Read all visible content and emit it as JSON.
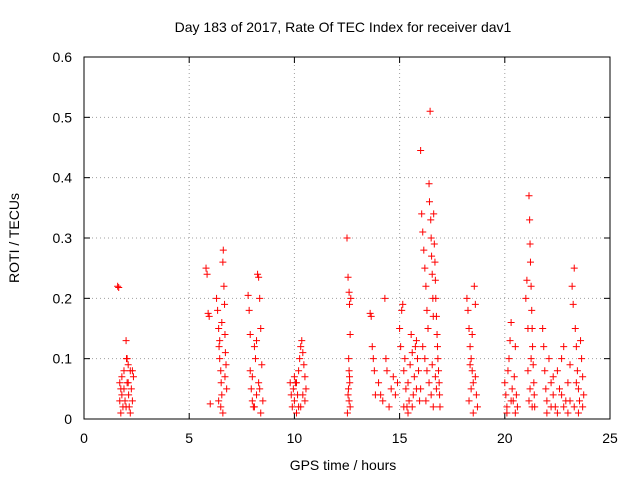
{
  "chart_data": {
    "type": "scatter",
    "title": "Day 183 of 2017, Rate Of TEC Index for receiver dav1",
    "xlabel": "GPS time / hours",
    "ylabel": "ROTI / TECUs",
    "xlim": [
      0,
      25
    ],
    "ylim": [
      0,
      0.6
    ],
    "xticks": [
      0,
      5,
      10,
      15,
      20,
      25
    ],
    "yticks": [
      0,
      0.1,
      0.2,
      0.3,
      0.4,
      0.5,
      0.6
    ],
    "xtick_labels": [
      "0",
      "5",
      "10",
      "15",
      "20",
      "25"
    ],
    "ytick_labels": [
      "0",
      "0.1",
      "0.2",
      "0.3",
      "0.4",
      "0.5",
      "0.6"
    ],
    "grid": true,
    "marker": "+",
    "color": "#ff0000",
    "series": [
      {
        "points": [
          [
            1.6,
            0.22
          ],
          [
            1.65,
            0.218
          ],
          [
            1.7,
            0.06
          ],
          [
            1.75,
            0.05
          ],
          [
            1.8,
            0.04
          ],
          [
            1.85,
            0.02
          ],
          [
            1.9,
            0.08
          ],
          [
            1.95,
            0.03
          ],
          [
            2.0,
            0.13
          ],
          [
            2.02,
            0.1
          ],
          [
            2.05,
            0.06
          ],
          [
            2.1,
            0.09
          ],
          [
            2.12,
            0.04
          ],
          [
            2.15,
            0.02
          ],
          [
            2.2,
            0.08
          ],
          [
            2.25,
            0.05
          ],
          [
            2.3,
            0.03
          ],
          [
            2.35,
            0.07
          ],
          [
            1.7,
            0.03
          ],
          [
            1.8,
            0.07
          ],
          [
            1.9,
            0.05
          ],
          [
            2.0,
            0.02
          ],
          [
            2.1,
            0.06
          ],
          [
            2.2,
            0.01
          ],
          [
            2.3,
            0.08
          ],
          [
            1.75,
            0.01
          ],
          [
            2.05,
            0.1
          ],
          [
            5.8,
            0.25
          ],
          [
            5.85,
            0.24
          ],
          [
            5.9,
            0.175
          ],
          [
            5.95,
            0.17
          ],
          [
            6.0,
            0.025
          ],
          [
            6.3,
            0.2
          ],
          [
            6.35,
            0.18
          ],
          [
            6.4,
            0.15
          ],
          [
            6.42,
            0.12
          ],
          [
            6.45,
            0.1
          ],
          [
            6.5,
            0.08
          ],
          [
            6.52,
            0.06
          ],
          [
            6.55,
            0.04
          ],
          [
            6.6,
            0.26
          ],
          [
            6.62,
            0.28
          ],
          [
            6.65,
            0.22
          ],
          [
            6.68,
            0.19
          ],
          [
            6.7,
            0.14
          ],
          [
            6.72,
            0.11
          ],
          [
            6.75,
            0.09
          ],
          [
            6.78,
            0.05
          ],
          [
            6.4,
            0.03
          ],
          [
            6.5,
            0.02
          ],
          [
            6.6,
            0.01
          ],
          [
            6.7,
            0.07
          ],
          [
            6.55,
            0.16
          ],
          [
            6.45,
            0.13
          ],
          [
            7.8,
            0.205
          ],
          [
            7.85,
            0.18
          ],
          [
            7.9,
            0.08
          ],
          [
            7.95,
            0.05
          ],
          [
            8.0,
            0.03
          ],
          [
            8.05,
            0.02
          ],
          [
            8.1,
            0.12
          ],
          [
            8.15,
            0.1
          ],
          [
            8.2,
            0.04
          ],
          [
            8.25,
            0.24
          ],
          [
            8.3,
            0.235
          ],
          [
            8.35,
            0.2
          ],
          [
            8.4,
            0.15
          ],
          [
            8.45,
            0.09
          ],
          [
            8.5,
            0.03
          ],
          [
            8.3,
            0.06
          ],
          [
            8.4,
            0.01
          ],
          [
            7.9,
            0.14
          ],
          [
            8.0,
            0.07
          ],
          [
            8.1,
            0.02
          ],
          [
            8.2,
            0.13
          ],
          [
            8.35,
            0.05
          ],
          [
            9.8,
            0.06
          ],
          [
            9.85,
            0.04
          ],
          [
            9.9,
            0.02
          ],
          [
            9.95,
            0.05
          ],
          [
            10.0,
            0.03
          ],
          [
            10.05,
            0.06
          ],
          [
            10.1,
            0.01
          ],
          [
            10.15,
            0.04
          ],
          [
            10.2,
            0.08
          ],
          [
            10.25,
            0.1
          ],
          [
            10.3,
            0.12
          ],
          [
            10.35,
            0.13
          ],
          [
            10.4,
            0.11
          ],
          [
            10.45,
            0.09
          ],
          [
            10.5,
            0.07
          ],
          [
            10.55,
            0.05
          ],
          [
            10.3,
            0.02
          ],
          [
            10.4,
            0.04
          ],
          [
            10.5,
            0.03
          ],
          [
            10.0,
            0.07
          ],
          [
            10.2,
            0.02
          ],
          [
            10.1,
            0.06
          ],
          [
            12.5,
            0.3
          ],
          [
            12.55,
            0.235
          ],
          [
            12.6,
            0.21
          ],
          [
            12.62,
            0.19
          ],
          [
            12.65,
            0.14
          ],
          [
            12.58,
            0.1
          ],
          [
            12.6,
            0.08
          ],
          [
            12.63,
            0.06
          ],
          [
            12.55,
            0.04
          ],
          [
            12.6,
            0.03
          ],
          [
            12.65,
            0.02
          ],
          [
            12.52,
            0.01
          ],
          [
            12.57,
            0.05
          ],
          [
            12.62,
            0.07
          ],
          [
            12.68,
            0.2
          ],
          [
            13.6,
            0.175
          ],
          [
            13.65,
            0.17
          ],
          [
            13.7,
            0.12
          ],
          [
            13.75,
            0.1
          ],
          [
            13.8,
            0.08
          ],
          [
            13.85,
            0.04
          ],
          [
            14.0,
            0.06
          ],
          [
            14.1,
            0.04
          ],
          [
            14.2,
            0.03
          ],
          [
            14.3,
            0.2
          ],
          [
            14.35,
            0.1
          ],
          [
            14.4,
            0.08
          ],
          [
            14.5,
            0.02
          ],
          [
            14.6,
            0.05
          ],
          [
            14.7,
            0.07
          ],
          [
            14.8,
            0.04
          ],
          [
            14.9,
            0.06
          ],
          [
            15.0,
            0.15
          ],
          [
            15.05,
            0.12
          ],
          [
            15.1,
            0.18
          ],
          [
            15.15,
            0.19
          ],
          [
            15.2,
            0.08
          ],
          [
            15.25,
            0.1
          ],
          [
            15.3,
            0.05
          ],
          [
            15.35,
            0.02
          ],
          [
            15.4,
            0.06
          ],
          [
            15.45,
            0.03
          ],
          [
            15.5,
            0.09
          ],
          [
            15.55,
            0.14
          ],
          [
            15.6,
            0.11
          ],
          [
            15.65,
            0.04
          ],
          [
            15.7,
            0.07
          ],
          [
            15.75,
            0.12
          ],
          [
            15.8,
            0.13
          ],
          [
            15.85,
            0.1
          ],
          [
            15.9,
            0.08
          ],
          [
            15.95,
            0.03
          ],
          [
            15.2,
            0.02
          ],
          [
            15.4,
            0.01
          ],
          [
            15.6,
            0.02
          ],
          [
            15.8,
            0.05
          ],
          [
            16.0,
            0.445
          ],
          [
            16.05,
            0.34
          ],
          [
            16.1,
            0.31
          ],
          [
            16.15,
            0.28
          ],
          [
            16.2,
            0.25
          ],
          [
            16.25,
            0.22
          ],
          [
            16.3,
            0.18
          ],
          [
            16.35,
            0.15
          ],
          [
            16.4,
            0.39
          ],
          [
            16.42,
            0.36
          ],
          [
            16.45,
            0.51
          ],
          [
            16.48,
            0.33
          ],
          [
            16.5,
            0.3
          ],
          [
            16.52,
            0.27
          ],
          [
            16.55,
            0.24
          ],
          [
            16.58,
            0.2
          ],
          [
            16.6,
            0.17
          ],
          [
            16.62,
            0.34
          ],
          [
            16.65,
            0.29
          ],
          [
            16.68,
            0.26
          ],
          [
            16.7,
            0.23
          ],
          [
            16.72,
            0.2
          ],
          [
            16.75,
            0.17
          ],
          [
            16.78,
            0.14
          ],
          [
            16.8,
            0.12
          ],
          [
            16.82,
            0.1
          ],
          [
            16.85,
            0.08
          ],
          [
            16.88,
            0.06
          ],
          [
            16.9,
            0.04
          ],
          [
            16.92,
            0.02
          ],
          [
            16.1,
            0.12
          ],
          [
            16.2,
            0.1
          ],
          [
            16.3,
            0.08
          ],
          [
            16.4,
            0.06
          ],
          [
            16.5,
            0.04
          ],
          [
            16.6,
            0.02
          ],
          [
            16.7,
            0.07
          ],
          [
            16.0,
            0.05
          ],
          [
            16.25,
            0.03
          ],
          [
            16.55,
            0.09
          ],
          [
            16.75,
            0.05
          ],
          [
            18.2,
            0.2
          ],
          [
            18.25,
            0.18
          ],
          [
            18.3,
            0.15
          ],
          [
            18.35,
            0.12
          ],
          [
            18.4,
            0.1
          ],
          [
            18.45,
            0.08
          ],
          [
            18.5,
            0.06
          ],
          [
            18.55,
            0.22
          ],
          [
            18.6,
            0.19
          ],
          [
            18.65,
            0.04
          ],
          [
            18.7,
            0.02
          ],
          [
            18.3,
            0.03
          ],
          [
            18.4,
            0.05
          ],
          [
            18.5,
            0.01
          ],
          [
            18.6,
            0.07
          ],
          [
            18.35,
            0.09
          ],
          [
            18.45,
            0.14
          ],
          [
            20.0,
            0.06
          ],
          [
            20.05,
            0.04
          ],
          [
            20.1,
            0.02
          ],
          [
            20.15,
            0.08
          ],
          [
            20.2,
            0.1
          ],
          [
            20.25,
            0.13
          ],
          [
            20.3,
            0.16
          ],
          [
            20.35,
            0.05
          ],
          [
            20.4,
            0.03
          ],
          [
            20.45,
            0.07
          ],
          [
            20.5,
            0.12
          ],
          [
            20.55,
            0.04
          ],
          [
            20.6,
            0.02
          ],
          [
            20.1,
            0.01
          ],
          [
            20.3,
            0.03
          ],
          [
            20.5,
            0.01
          ],
          [
            21.0,
            0.2
          ],
          [
            21.05,
            0.23
          ],
          [
            21.1,
            0.15
          ],
          [
            21.15,
            0.37
          ],
          [
            21.18,
            0.33
          ],
          [
            21.2,
            0.29
          ],
          [
            21.22,
            0.26
          ],
          [
            21.25,
            0.22
          ],
          [
            21.28,
            0.18
          ],
          [
            21.3,
            0.15
          ],
          [
            21.32,
            0.12
          ],
          [
            21.35,
            0.09
          ],
          [
            21.38,
            0.06
          ],
          [
            21.4,
            0.04
          ],
          [
            21.42,
            0.02
          ],
          [
            21.1,
            0.08
          ],
          [
            21.2,
            0.05
          ],
          [
            21.3,
            0.02
          ],
          [
            21.25,
            0.1
          ],
          [
            21.15,
            0.03
          ],
          [
            21.8,
            0.15
          ],
          [
            21.85,
            0.12
          ],
          [
            21.9,
            0.08
          ],
          [
            21.95,
            0.05
          ],
          [
            22.0,
            0.03
          ],
          [
            22.1,
            0.1
          ],
          [
            22.2,
            0.06
          ],
          [
            22.3,
            0.04
          ],
          [
            22.4,
            0.02
          ],
          [
            22.5,
            0.08
          ],
          [
            22.6,
            0.05
          ],
          [
            22.7,
            0.1
          ],
          [
            22.8,
            0.12
          ],
          [
            22.9,
            0.03
          ],
          [
            23.0,
            0.06
          ],
          [
            23.1,
            0.09
          ],
          [
            23.2,
            0.22
          ],
          [
            23.25,
            0.19
          ],
          [
            23.3,
            0.25
          ],
          [
            23.35,
            0.15
          ],
          [
            23.4,
            0.12
          ],
          [
            23.45,
            0.08
          ],
          [
            23.5,
            0.05
          ],
          [
            23.55,
            0.03
          ],
          [
            23.6,
            0.13
          ],
          [
            23.65,
            0.1
          ],
          [
            23.7,
            0.07
          ],
          [
            23.75,
            0.04
          ],
          [
            22.0,
            0.01
          ],
          [
            22.2,
            0.02
          ],
          [
            22.5,
            0.01
          ],
          [
            22.8,
            0.02
          ],
          [
            23.0,
            0.01
          ],
          [
            23.3,
            0.02
          ],
          [
            23.5,
            0.01
          ],
          [
            23.7,
            0.02
          ],
          [
            22.3,
            0.07
          ],
          [
            22.7,
            0.04
          ],
          [
            23.1,
            0.03
          ],
          [
            23.4,
            0.06
          ]
        ]
      }
    ]
  }
}
